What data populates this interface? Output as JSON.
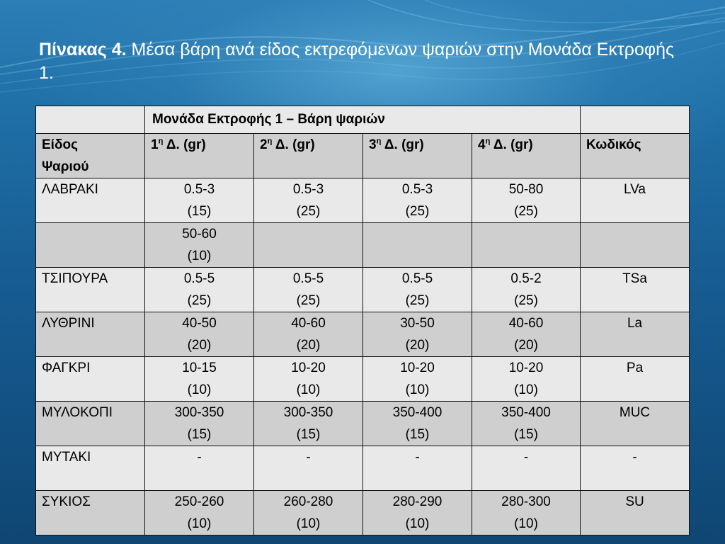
{
  "title": {
    "bold": "Πίνακας 4.",
    "rest": " Μέσα βάρη ανά είδος εκτρεφόμενων ψαριών στην Μονάδα Εκτροφής 1."
  },
  "table": {
    "group_header": "Μονάδα Εκτροφής 1 – Βάρη ψαριών",
    "col_headers": {
      "species_line1": "Είδος",
      "species_line2": "Ψαριού",
      "d1_num": "1",
      "d2_num": "2",
      "d3_num": "3",
      "d4_num": "4",
      "sup": "η",
      "d_suffix": " Δ. (gr)",
      "code": "Κωδικός"
    },
    "rows": [
      {
        "species": "ΛΑΒΡΑΚΙ",
        "cells": [
          [
            "0.5-3",
            "(15)"
          ],
          [
            "0.5-3",
            "(25)"
          ],
          [
            "0.5-3",
            "(25)"
          ],
          [
            "50-80",
            "(25)"
          ]
        ],
        "code": "LVa"
      },
      {
        "species": "",
        "cells": [
          [
            "50-60",
            "(10)"
          ],
          [
            "",
            ""
          ],
          [
            "",
            ""
          ],
          [
            "",
            ""
          ]
        ],
        "code": ""
      },
      {
        "species": "ΤΣΙΠΟΥΡΑ",
        "cells": [
          [
            "0.5-5",
            "(25)"
          ],
          [
            "0.5-5",
            "(25)"
          ],
          [
            "0.5-5",
            "(25)"
          ],
          [
            "0.5-2",
            "(25)"
          ]
        ],
        "code": "TSa"
      },
      {
        "species": "ΛΥΘΡΙΝΙ",
        "cells": [
          [
            "40-50",
            "(20)"
          ],
          [
            "40-60",
            "(20)"
          ],
          [
            "30-50",
            "(20)"
          ],
          [
            "40-60",
            "(20)"
          ]
        ],
        "code": "La"
      },
      {
        "species": "ΦΑΓΚΡΙ",
        "cells": [
          [
            "10-15",
            "(10)"
          ],
          [
            "10-20",
            "(10)"
          ],
          [
            "10-20",
            "(10)"
          ],
          [
            "10-20",
            "(10)"
          ]
        ],
        "code": "Pa"
      },
      {
        "species": "ΜΥΛΟΚΟΠΙ",
        "cells": [
          [
            "300-350",
            "(15)"
          ],
          [
            "300-350",
            "(15)"
          ],
          [
            "350-400",
            "(15)"
          ],
          [
            "350-400",
            "(15)"
          ]
        ],
        "code": "MUC"
      },
      {
        "species": "ΜΥΤΑΚΙ",
        "cells": [
          [
            "-",
            ""
          ],
          [
            "-",
            ""
          ],
          [
            "-",
            ""
          ],
          [
            "-",
            ""
          ]
        ],
        "code": "-"
      },
      {
        "species": "ΣΥΚΙΟΣ",
        "cells": [
          [
            "250-260",
            "(10)"
          ],
          [
            "260-280",
            "(10)"
          ],
          [
            "280-290",
            "(10)"
          ],
          [
            "280-300",
            "(10)"
          ]
        ],
        "code": "SU"
      }
    ]
  }
}
